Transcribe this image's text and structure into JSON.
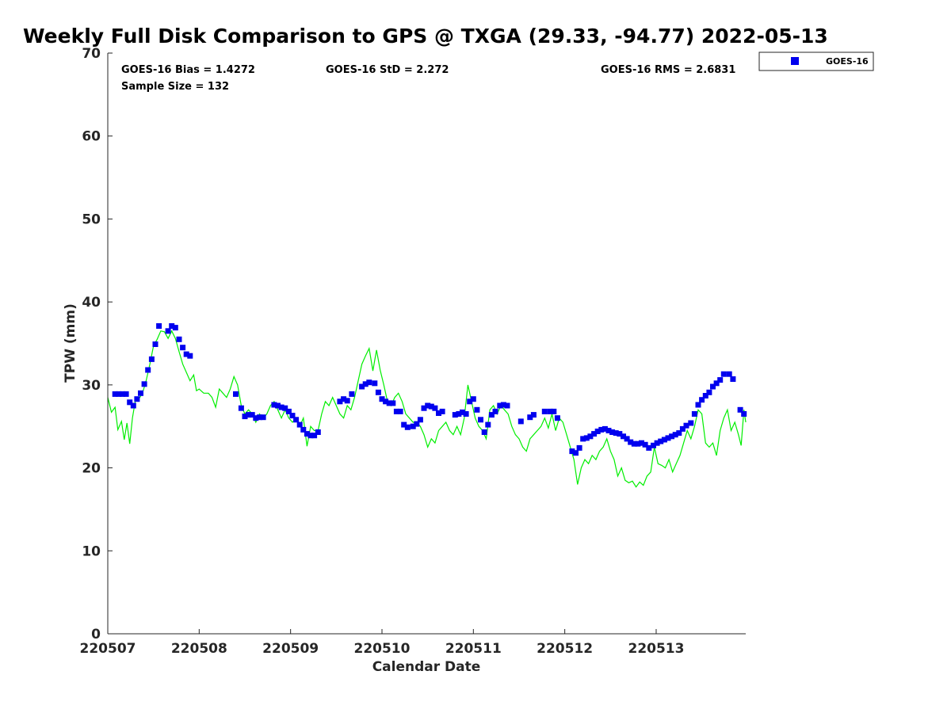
{
  "chart_data": {
    "type": "scatter",
    "title": "Weekly Full Disk Comparison to GPS @ TXGA (29.33, -94.77) 2022-05-13",
    "xlabel": "Calendar Date",
    "ylabel": "TPW (mm)",
    "xlim": [
      0,
      6.98
    ],
    "ylim": [
      0,
      70
    ],
    "xtick_values": [
      0,
      1,
      2,
      3,
      4,
      5,
      6
    ],
    "xtick_labels": [
      "220507",
      "220508",
      "220509",
      "220510",
      "220511",
      "220512",
      "220513"
    ],
    "ytick_values": [
      0,
      10,
      20,
      30,
      40,
      50,
      60,
      70
    ],
    "ytick_labels": [
      "0",
      "10",
      "20",
      "30",
      "40",
      "50",
      "60",
      "70"
    ],
    "grid": false,
    "legend_position": "top-right",
    "stats": {
      "bias": "GOES-16 Bias = 1.4272",
      "std": "GOES-16 StD = 2.272",
      "rms": "GOES-16 RMS = 2.6831",
      "sample": "Sample Size = 132"
    },
    "series": [
      {
        "name": "GOES-16",
        "kind": "markers",
        "color": "#0000ee",
        "points": [
          [
            0.08,
            28.9
          ],
          [
            0.12,
            28.9
          ],
          [
            0.16,
            28.9
          ],
          [
            0.2,
            28.9
          ],
          [
            0.24,
            27.9
          ],
          [
            0.28,
            27.5
          ],
          [
            0.32,
            28.3
          ],
          [
            0.36,
            29.0
          ],
          [
            0.4,
            30.1
          ],
          [
            0.44,
            31.8
          ],
          [
            0.48,
            33.1
          ],
          [
            0.52,
            34.9
          ],
          [
            0.56,
            37.1
          ],
          [
            0.66,
            36.5
          ],
          [
            0.7,
            37.1
          ],
          [
            0.74,
            36.9
          ],
          [
            0.78,
            35.5
          ],
          [
            0.82,
            34.5
          ],
          [
            0.86,
            33.7
          ],
          [
            0.9,
            33.5
          ],
          [
            1.4,
            28.9
          ],
          [
            1.46,
            27.2
          ],
          [
            1.5,
            26.2
          ],
          [
            1.54,
            26.4
          ],
          [
            1.58,
            26.4
          ],
          [
            1.62,
            26.0
          ],
          [
            1.66,
            26.1
          ],
          [
            1.7,
            26.1
          ],
          [
            1.82,
            27.6
          ],
          [
            1.86,
            27.5
          ],
          [
            1.9,
            27.3
          ],
          [
            1.94,
            27.2
          ],
          [
            1.98,
            26.8
          ],
          [
            2.02,
            26.3
          ],
          [
            2.06,
            25.8
          ],
          [
            2.1,
            25.2
          ],
          [
            2.14,
            24.6
          ],
          [
            2.18,
            24.1
          ],
          [
            2.22,
            23.9
          ],
          [
            2.26,
            23.9
          ],
          [
            2.3,
            24.3
          ],
          [
            2.54,
            28.0
          ],
          [
            2.58,
            28.3
          ],
          [
            2.62,
            28.1
          ],
          [
            2.67,
            28.9
          ],
          [
            2.78,
            29.8
          ],
          [
            2.82,
            30.1
          ],
          [
            2.86,
            30.3
          ],
          [
            2.92,
            30.2
          ],
          [
            2.96,
            29.1
          ],
          [
            3.0,
            28.3
          ],
          [
            3.04,
            28.0
          ],
          [
            3.08,
            27.8
          ],
          [
            3.12,
            27.8
          ],
          [
            3.16,
            26.8
          ],
          [
            3.2,
            26.8
          ],
          [
            3.24,
            25.2
          ],
          [
            3.28,
            24.9
          ],
          [
            3.34,
            25.0
          ],
          [
            3.38,
            25.3
          ],
          [
            3.42,
            25.8
          ],
          [
            3.46,
            27.2
          ],
          [
            3.5,
            27.5
          ],
          [
            3.54,
            27.4
          ],
          [
            3.58,
            27.2
          ],
          [
            3.62,
            26.6
          ],
          [
            3.66,
            26.8
          ],
          [
            3.8,
            26.4
          ],
          [
            3.84,
            26.5
          ],
          [
            3.88,
            26.7
          ],
          [
            3.92,
            26.5
          ],
          [
            3.96,
            28.0
          ],
          [
            4.0,
            28.3
          ],
          [
            4.04,
            27.0
          ],
          [
            4.08,
            25.8
          ],
          [
            4.12,
            24.3
          ],
          [
            4.16,
            25.2
          ],
          [
            4.2,
            26.4
          ],
          [
            4.24,
            26.8
          ],
          [
            4.29,
            27.5
          ],
          [
            4.33,
            27.6
          ],
          [
            4.37,
            27.5
          ],
          [
            4.52,
            25.6
          ],
          [
            4.62,
            26.1
          ],
          [
            4.66,
            26.4
          ],
          [
            4.78,
            26.8
          ],
          [
            4.84,
            26.8
          ],
          [
            4.88,
            26.8
          ],
          [
            4.92,
            26.0
          ],
          [
            5.08,
            22.0
          ],
          [
            5.12,
            21.8
          ],
          [
            5.16,
            22.4
          ],
          [
            5.2,
            23.5
          ],
          [
            5.24,
            23.6
          ],
          [
            5.28,
            23.8
          ],
          [
            5.32,
            24.1
          ],
          [
            5.36,
            24.4
          ],
          [
            5.4,
            24.6
          ],
          [
            5.44,
            24.7
          ],
          [
            5.48,
            24.5
          ],
          [
            5.52,
            24.3
          ],
          [
            5.56,
            24.2
          ],
          [
            5.6,
            24.1
          ],
          [
            5.64,
            23.8
          ],
          [
            5.68,
            23.5
          ],
          [
            5.72,
            23.1
          ],
          [
            5.76,
            22.9
          ],
          [
            5.8,
            22.9
          ],
          [
            5.84,
            23.0
          ],
          [
            5.88,
            22.8
          ],
          [
            5.92,
            22.4
          ],
          [
            5.97,
            22.7
          ],
          [
            6.01,
            23.0
          ],
          [
            6.05,
            23.2
          ],
          [
            6.09,
            23.4
          ],
          [
            6.13,
            23.6
          ],
          [
            6.17,
            23.8
          ],
          [
            6.21,
            24.0
          ],
          [
            6.25,
            24.2
          ],
          [
            6.29,
            24.7
          ],
          [
            6.33,
            25.1
          ],
          [
            6.38,
            25.4
          ],
          [
            6.42,
            26.5
          ],
          [
            6.46,
            27.6
          ],
          [
            6.5,
            28.2
          ],
          [
            6.54,
            28.7
          ],
          [
            6.58,
            29.1
          ],
          [
            6.62,
            29.8
          ],
          [
            6.66,
            30.2
          ],
          [
            6.7,
            30.6
          ],
          [
            6.74,
            31.3
          ],
          [
            6.8,
            31.3
          ],
          [
            6.84,
            30.7
          ],
          [
            6.92,
            27.0
          ],
          [
            6.96,
            26.5
          ]
        ]
      },
      {
        "name": "",
        "kind": "line",
        "color": "#00ee00",
        "points": [
          [
            0.0,
            28.5
          ],
          [
            0.04,
            26.7
          ],
          [
            0.08,
            27.3
          ],
          [
            0.11,
            24.6
          ],
          [
            0.15,
            25.6
          ],
          [
            0.18,
            23.4
          ],
          [
            0.21,
            25.4
          ],
          [
            0.24,
            22.9
          ],
          [
            0.27,
            26.0
          ],
          [
            0.3,
            28.0
          ],
          [
            0.34,
            28.3
          ],
          [
            0.38,
            29.0
          ],
          [
            0.42,
            30.5
          ],
          [
            0.46,
            32.5
          ],
          [
            0.5,
            34.7
          ],
          [
            0.54,
            35.5
          ],
          [
            0.58,
            36.5
          ],
          [
            0.62,
            36.4
          ],
          [
            0.66,
            35.6
          ],
          [
            0.7,
            36.5
          ],
          [
            0.74,
            35.6
          ],
          [
            0.78,
            34.0
          ],
          [
            0.82,
            32.5
          ],
          [
            0.86,
            31.5
          ],
          [
            0.9,
            30.5
          ],
          [
            0.94,
            31.2
          ],
          [
            0.97,
            29.3
          ],
          [
            1.0,
            29.5
          ],
          [
            1.05,
            29.0
          ],
          [
            1.1,
            29.0
          ],
          [
            1.14,
            28.5
          ],
          [
            1.18,
            27.3
          ],
          [
            1.22,
            29.5
          ],
          [
            1.26,
            29.0
          ],
          [
            1.3,
            28.5
          ],
          [
            1.34,
            29.5
          ],
          [
            1.38,
            31.0
          ],
          [
            1.42,
            30.0
          ],
          [
            1.46,
            27.5
          ],
          [
            1.5,
            26.5
          ],
          [
            1.54,
            27.0
          ],
          [
            1.58,
            26.5
          ],
          [
            1.62,
            25.5
          ],
          [
            1.66,
            26.5
          ],
          [
            1.7,
            26.0
          ],
          [
            1.74,
            26.5
          ],
          [
            1.78,
            27.5
          ],
          [
            1.82,
            28.0
          ],
          [
            1.86,
            27.0
          ],
          [
            1.9,
            26.0
          ],
          [
            1.94,
            27.0
          ],
          [
            1.98,
            26.0
          ],
          [
            2.02,
            25.5
          ],
          [
            2.06,
            26.0
          ],
          [
            2.1,
            25.0
          ],
          [
            2.14,
            26.0
          ],
          [
            2.18,
            22.6
          ],
          [
            2.22,
            25.0
          ],
          [
            2.26,
            24.5
          ],
          [
            2.3,
            24.5
          ],
          [
            2.34,
            26.5
          ],
          [
            2.38,
            28.0
          ],
          [
            2.42,
            27.5
          ],
          [
            2.46,
            28.5
          ],
          [
            2.5,
            27.5
          ],
          [
            2.54,
            26.5
          ],
          [
            2.58,
            26.0
          ],
          [
            2.62,
            27.5
          ],
          [
            2.66,
            27.0
          ],
          [
            2.7,
            28.5
          ],
          [
            2.74,
            30.5
          ],
          [
            2.78,
            32.5
          ],
          [
            2.82,
            33.5
          ],
          [
            2.86,
            34.4
          ],
          [
            2.9,
            31.7
          ],
          [
            2.94,
            34.2
          ],
          [
            2.98,
            31.8
          ],
          [
            3.02,
            30.0
          ],
          [
            3.06,
            28.0
          ],
          [
            3.1,
            27.5
          ],
          [
            3.14,
            28.5
          ],
          [
            3.18,
            29.0
          ],
          [
            3.22,
            28.0
          ],
          [
            3.26,
            26.5
          ],
          [
            3.3,
            26.0
          ],
          [
            3.34,
            25.5
          ],
          [
            3.38,
            25.5
          ],
          [
            3.42,
            25.0
          ],
          [
            3.46,
            24.0
          ],
          [
            3.5,
            22.5
          ],
          [
            3.54,
            23.5
          ],
          [
            3.58,
            23.0
          ],
          [
            3.62,
            24.5
          ],
          [
            3.66,
            25.0
          ],
          [
            3.7,
            25.5
          ],
          [
            3.74,
            24.5
          ],
          [
            3.78,
            24.0
          ],
          [
            3.82,
            25.0
          ],
          [
            3.86,
            24.0
          ],
          [
            3.9,
            26.0
          ],
          [
            3.94,
            30.0
          ],
          [
            3.98,
            28.0
          ],
          [
            4.02,
            26.0
          ],
          [
            4.06,
            25.0
          ],
          [
            4.1,
            24.5
          ],
          [
            4.14,
            23.5
          ],
          [
            4.18,
            27.0
          ],
          [
            4.22,
            27.5
          ],
          [
            4.26,
            26.5
          ],
          [
            4.3,
            27.5
          ],
          [
            4.34,
            27.0
          ],
          [
            4.38,
            26.5
          ],
          [
            4.42,
            25.0
          ],
          [
            4.46,
            24.0
          ],
          [
            4.5,
            23.5
          ],
          [
            4.54,
            22.5
          ],
          [
            4.58,
            22.0
          ],
          [
            4.62,
            23.5
          ],
          [
            4.66,
            24.0
          ],
          [
            4.7,
            24.5
          ],
          [
            4.74,
            25.0
          ],
          [
            4.78,
            26.0
          ],
          [
            4.82,
            24.8
          ],
          [
            4.86,
            26.5
          ],
          [
            4.9,
            24.5
          ],
          [
            4.94,
            26.0
          ],
          [
            4.98,
            25.5
          ],
          [
            5.02,
            24.0
          ],
          [
            5.06,
            22.5
          ],
          [
            5.1,
            21.0
          ],
          [
            5.14,
            18.0
          ],
          [
            5.18,
            20.0
          ],
          [
            5.22,
            21.0
          ],
          [
            5.26,
            20.5
          ],
          [
            5.3,
            21.5
          ],
          [
            5.34,
            21.0
          ],
          [
            5.38,
            22.0
          ],
          [
            5.42,
            22.5
          ],
          [
            5.46,
            23.5
          ],
          [
            5.5,
            22.0
          ],
          [
            5.54,
            21.0
          ],
          [
            5.58,
            19.0
          ],
          [
            5.62,
            20.0
          ],
          [
            5.66,
            18.5
          ],
          [
            5.7,
            18.2
          ],
          [
            5.74,
            18.4
          ],
          [
            5.78,
            17.7
          ],
          [
            5.82,
            18.3
          ],
          [
            5.86,
            17.9
          ],
          [
            5.9,
            19.0
          ],
          [
            5.94,
            19.5
          ],
          [
            5.98,
            22.5
          ],
          [
            6.02,
            20.5
          ],
          [
            6.06,
            20.3
          ],
          [
            6.1,
            20.0
          ],
          [
            6.14,
            21.0
          ],
          [
            6.18,
            19.5
          ],
          [
            6.22,
            20.5
          ],
          [
            6.26,
            21.5
          ],
          [
            6.3,
            23.0
          ],
          [
            6.34,
            24.5
          ],
          [
            6.38,
            23.5
          ],
          [
            6.42,
            25.0
          ],
          [
            6.46,
            27.0
          ],
          [
            6.5,
            26.5
          ],
          [
            6.54,
            23.0
          ],
          [
            6.58,
            22.5
          ],
          [
            6.62,
            23.0
          ],
          [
            6.66,
            21.5
          ],
          [
            6.7,
            24.5
          ],
          [
            6.74,
            26.0
          ],
          [
            6.78,
            27.0
          ],
          [
            6.82,
            24.5
          ],
          [
            6.86,
            25.5
          ],
          [
            6.9,
            24.0
          ],
          [
            6.93,
            22.7
          ],
          [
            6.96,
            27.0
          ],
          [
            6.98,
            25.5
          ]
        ]
      }
    ]
  }
}
